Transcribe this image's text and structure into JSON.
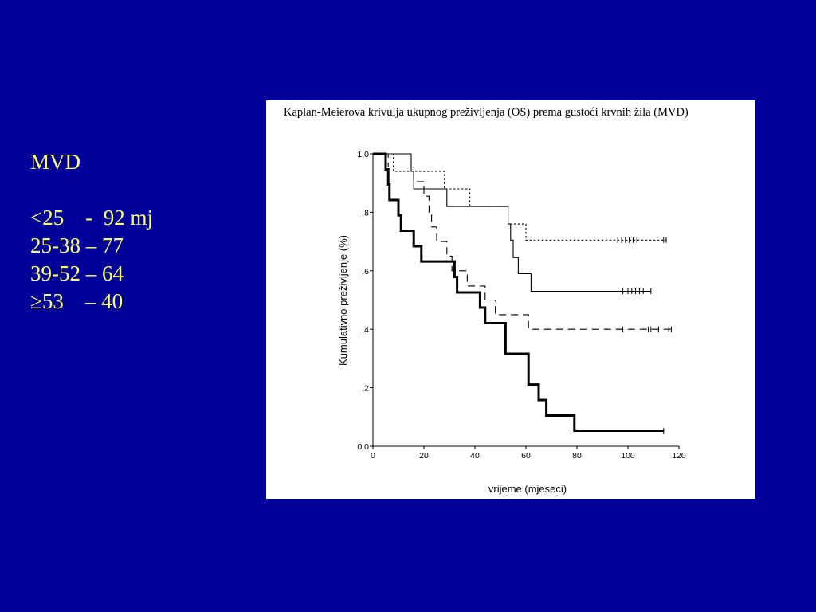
{
  "legend": {
    "heading": "MVD",
    "lines": [
      "<25    -  92 mj",
      "25-38 – 77",
      "39-52 – 64",
      "≥53    – 40"
    ]
  },
  "chart_data": {
    "type": "line",
    "subtype": "kaplan-meier-step",
    "title": "Kaplan-Meierova krivulja ukupnog preživljenja (OS) prema gustoći krvnih žila (MVD)",
    "xlabel": "vrijeme (mjeseci)",
    "ylabel": "Kumulativno preživljenje  (%)",
    "xlim": [
      0,
      120
    ],
    "ylim": [
      0,
      1
    ],
    "xticks": [
      0,
      20,
      40,
      60,
      80,
      100,
      120
    ],
    "xtick_labels": [
      "0",
      "20",
      "40",
      "60",
      "80",
      "100",
      "120"
    ],
    "yticks": [
      0,
      0.2,
      0.4,
      0.6,
      0.8,
      1.0
    ],
    "ytick_labels": [
      "0,0",
      ",2",
      ",4",
      ",6",
      ",8",
      "1,0"
    ],
    "grid": false,
    "series": [
      {
        "style": "dotted",
        "steps": [
          [
            0,
            1.0
          ],
          [
            8,
            1.0
          ],
          [
            8,
            0.94
          ],
          [
            28,
            0.94
          ],
          [
            28,
            0.88
          ],
          [
            38,
            0.88
          ],
          [
            38,
            0.82
          ],
          [
            53,
            0.82
          ],
          [
            53,
            0.76
          ],
          [
            60,
            0.76
          ],
          [
            60,
            0.705
          ],
          [
            115,
            0.705
          ]
        ],
        "censored": [
          96,
          97.5,
          99,
          100.5,
          102,
          103.5,
          114,
          115
        ]
      },
      {
        "style": "solid-thin",
        "steps": [
          [
            0,
            1.0
          ],
          [
            15,
            1.0
          ],
          [
            15,
            0.94
          ],
          [
            16,
            0.94
          ],
          [
            16,
            0.88
          ],
          [
            29,
            0.88
          ],
          [
            29,
            0.82
          ],
          [
            53,
            0.82
          ],
          [
            53,
            0.76
          ],
          [
            54,
            0.76
          ],
          [
            54,
            0.705
          ],
          [
            55,
            0.705
          ],
          [
            55,
            0.645
          ],
          [
            57,
            0.645
          ],
          [
            57,
            0.59
          ],
          [
            62,
            0.59
          ],
          [
            62,
            0.53
          ],
          [
            109,
            0.53
          ]
        ],
        "censored": [
          98,
          100,
          101.5,
          103,
          104.5,
          106,
          109
        ]
      },
      {
        "style": "dashed",
        "steps": [
          [
            0,
            1.0
          ],
          [
            6,
            1.0
          ],
          [
            6,
            0.955
          ],
          [
            16,
            0.955
          ],
          [
            16,
            0.905
          ],
          [
            20,
            0.905
          ],
          [
            20,
            0.855
          ],
          [
            22,
            0.855
          ],
          [
            22,
            0.8
          ],
          [
            23,
            0.8
          ],
          [
            23,
            0.75
          ],
          [
            25,
            0.75
          ],
          [
            25,
            0.7
          ],
          [
            29,
            0.7
          ],
          [
            29,
            0.65
          ],
          [
            31,
            0.65
          ],
          [
            31,
            0.6
          ],
          [
            37,
            0.6
          ],
          [
            37,
            0.548
          ],
          [
            44,
            0.548
          ],
          [
            44,
            0.5
          ],
          [
            48,
            0.5
          ],
          [
            48,
            0.45
          ],
          [
            61,
            0.45
          ],
          [
            61,
            0.4
          ],
          [
            117,
            0.4
          ]
        ],
        "censored": [
          98,
          108,
          109,
          112,
          116,
          117
        ]
      },
      {
        "style": "solid-thick",
        "steps": [
          [
            0,
            1.0
          ],
          [
            5,
            1.0
          ],
          [
            5,
            0.947
          ],
          [
            6,
            0.947
          ],
          [
            6,
            0.895
          ],
          [
            6.5,
            0.895
          ],
          [
            6.5,
            0.842
          ],
          [
            10,
            0.842
          ],
          [
            10,
            0.79
          ],
          [
            11,
            0.79
          ],
          [
            11,
            0.737
          ],
          [
            16,
            0.737
          ],
          [
            16,
            0.684
          ],
          [
            19,
            0.684
          ],
          [
            19,
            0.632
          ],
          [
            32,
            0.632
          ],
          [
            32,
            0.579
          ],
          [
            33,
            0.579
          ],
          [
            33,
            0.526
          ],
          [
            42,
            0.526
          ],
          [
            42,
            0.474
          ],
          [
            44,
            0.474
          ],
          [
            44,
            0.421
          ],
          [
            52,
            0.421
          ],
          [
            52,
            0.316
          ],
          [
            61,
            0.316
          ],
          [
            61,
            0.211
          ],
          [
            65,
            0.211
          ],
          [
            65,
            0.158
          ],
          [
            68,
            0.158
          ],
          [
            68,
            0.105
          ],
          [
            79,
            0.105
          ],
          [
            79,
            0.053
          ],
          [
            114,
            0.053
          ]
        ],
        "censored": [
          114
        ]
      }
    ]
  }
}
